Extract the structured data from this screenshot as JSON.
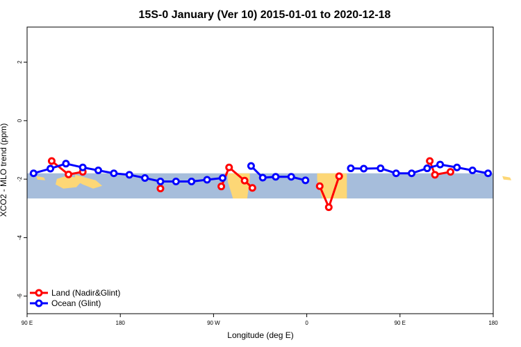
{
  "chart_data": {
    "type": "line",
    "title": "15S-0 January (Ver 10)   2015-01-01 to 2020-12-18",
    "xlabel": "Longitude (deg E)",
    "ylabel": "XCO2 - MLO trend (ppm)",
    "xlim": [
      90,
      450
    ],
    "ylim": [
      -6.6,
      3.2
    ],
    "xticks": [
      {
        "value": 90,
        "label": "90 E"
      },
      {
        "value": 162,
        "label": "180"
      },
      {
        "value": 234,
        "label": "90 W"
      },
      {
        "value": 306,
        "label": "0"
      },
      {
        "value": 378,
        "label": "90 E"
      },
      {
        "value": 450,
        "label": "180"
      }
    ],
    "yticks": [
      {
        "value": 2,
        "label": "2"
      },
      {
        "value": 0,
        "label": "0"
      },
      {
        "value": -2,
        "label": "-2"
      },
      {
        "value": -4,
        "label": "-4"
      },
      {
        "value": -6,
        "label": "-6"
      }
    ],
    "map_band": {
      "ymin": -2.66,
      "ymax": -1.8,
      "ocean_color": "#a6bddb",
      "land_color": "#fdd776"
    },
    "legend_position": "bottom-left",
    "series": [
      {
        "name": "Land (Nadir&Glint)",
        "color": "#ff0000",
        "segments": [
          [
            [
              109,
              -1.38
            ],
            [
              122,
              -1.84
            ],
            [
              133,
              -1.75
            ]
          ],
          [
            [
              193,
              -2.32
            ]
          ],
          [
            [
              240,
              -2.25
            ],
            [
              246,
              -1.6
            ],
            [
              258,
              -2.05
            ],
            [
              264,
              -2.3
            ]
          ],
          [
            [
              316,
              -2.24
            ],
            [
              323,
              -2.96
            ],
            [
              331,
              -1.9
            ]
          ],
          [
            [
              401,
              -1.38
            ],
            [
              405,
              -1.85
            ],
            [
              417,
              -1.75
            ]
          ]
        ]
      },
      {
        "name": "Ocean (Glint)",
        "color": "#0000ff",
        "segments": [
          [
            [
              95,
              -1.8
            ],
            [
              108,
              -1.64
            ],
            [
              120,
              -1.47
            ],
            [
              133,
              -1.6
            ],
            [
              145,
              -1.7
            ],
            [
              157,
              -1.8
            ],
            [
              169,
              -1.85
            ],
            [
              181,
              -1.96
            ],
            [
              193,
              -2.08
            ],
            [
              205,
              -2.08
            ],
            [
              217,
              -2.08
            ],
            [
              229,
              -2.02
            ],
            [
              241,
              -1.96
            ]
          ],
          [
            [
              263,
              -1.55
            ],
            [
              272,
              -1.95
            ],
            [
              282,
              -1.92
            ],
            [
              294,
              -1.92
            ],
            [
              305,
              -2.04
            ]
          ],
          [
            [
              340,
              -1.63
            ],
            [
              350,
              -1.64
            ],
            [
              363,
              -1.63
            ],
            [
              375,
              -1.8
            ],
            [
              387,
              -1.8
            ],
            [
              399,
              -1.63
            ],
            [
              409,
              -1.5
            ],
            [
              422,
              -1.6
            ],
            [
              434,
              -1.7
            ],
            [
              446,
              -1.8
            ]
          ]
        ]
      }
    ]
  }
}
